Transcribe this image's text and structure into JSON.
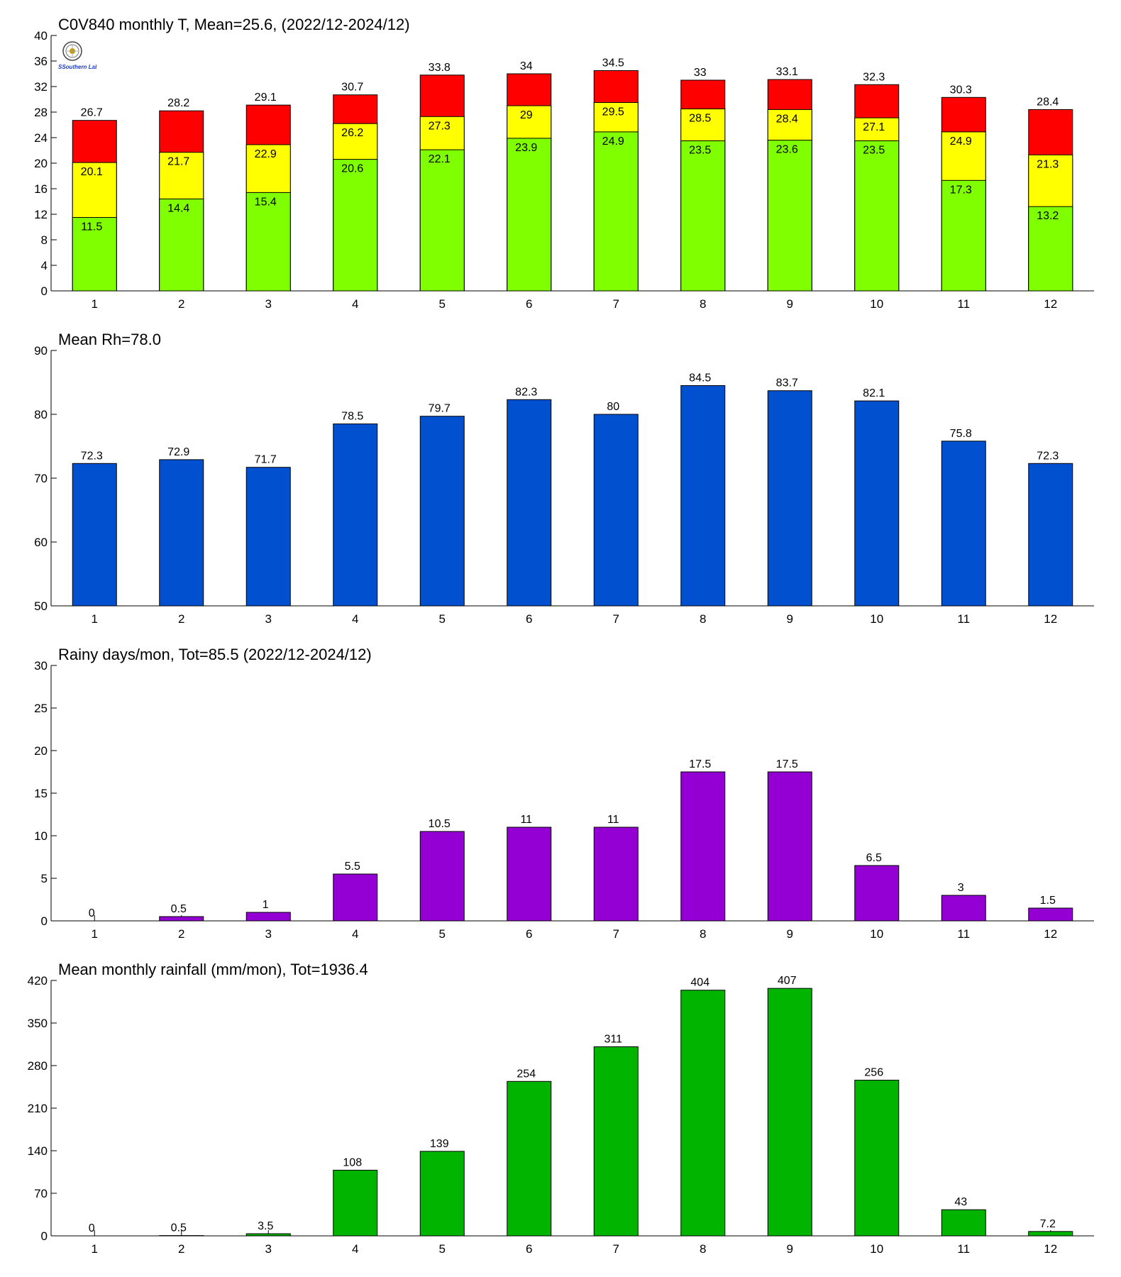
{
  "logo": {
    "text": "SSouthern Lab"
  },
  "chart_data": [
    {
      "type": "bar",
      "stacked": "overlay",
      "title": "C0V840 monthly T, Mean=25.6, (2022/12-2024/12)",
      "categories": [
        "1",
        "2",
        "3",
        "4",
        "5",
        "6",
        "7",
        "8",
        "9",
        "10",
        "11",
        "12"
      ],
      "ylim": [
        0,
        40
      ],
      "yticks": [
        0,
        4,
        8,
        12,
        16,
        20,
        24,
        28,
        32,
        36,
        40
      ],
      "grid": false,
      "series": [
        {
          "color": "#ff0000",
          "values": [
            26.7,
            28.2,
            29.1,
            30.7,
            33.8,
            34,
            34.5,
            33,
            33.1,
            32.3,
            30.3,
            28.4
          ],
          "labels": [
            "26.7",
            "28.2",
            "29.1",
            "30.7",
            "33.8",
            "34",
            "34.5",
            "33",
            "33.1",
            "32.3",
            "30.3",
            "28.4"
          ],
          "label_pos": "above"
        },
        {
          "color": "#ffff00",
          "values": [
            20.1,
            21.7,
            22.9,
            26.2,
            27.3,
            29,
            29.5,
            28.5,
            28.4,
            27.1,
            24.9,
            21.3
          ],
          "labels": [
            "20.1",
            "21.7",
            "22.9",
            "26.2",
            "27.3",
            "29",
            "29.5",
            "28.5",
            "28.4",
            "27.1",
            "24.9",
            "21.3"
          ],
          "label_pos": "inside"
        },
        {
          "color": "#80ff00",
          "values": [
            11.5,
            14.4,
            15.4,
            20.6,
            22.1,
            23.9,
            24.9,
            23.5,
            23.6,
            23.5,
            17.3,
            13.2
          ],
          "labels": [
            "11.5",
            "14.4",
            "15.4",
            "20.6",
            "22.1",
            "23.9",
            "24.9",
            "23.5",
            "23.6",
            "23.5",
            "17.3",
            "13.2"
          ],
          "label_pos": "inside"
        }
      ]
    },
    {
      "type": "bar",
      "title": "Mean Rh=78.0",
      "categories": [
        "1",
        "2",
        "3",
        "4",
        "5",
        "6",
        "7",
        "8",
        "9",
        "10",
        "11",
        "12"
      ],
      "ylim": [
        50,
        90
      ],
      "yticks": [
        50,
        60,
        70,
        80,
        90
      ],
      "grid": false,
      "series": [
        {
          "color": "#0050d0",
          "values": [
            72.3,
            72.9,
            71.7,
            78.5,
            79.7,
            82.3,
            80,
            84.5,
            83.7,
            82.1,
            75.8,
            72.3
          ],
          "labels": [
            "72.3",
            "72.9",
            "71.7",
            "78.5",
            "79.7",
            "82.3",
            "80",
            "84.5",
            "83.7",
            "82.1",
            "75.8",
            "72.3"
          ],
          "label_pos": "above"
        }
      ]
    },
    {
      "type": "bar",
      "title": "Rainy days/mon, Tot=85.5 (2022/12-2024/12)",
      "categories": [
        "1",
        "2",
        "3",
        "4",
        "5",
        "6",
        "7",
        "8",
        "9",
        "10",
        "11",
        "12"
      ],
      "ylim": [
        0,
        30
      ],
      "yticks": [
        0,
        5,
        10,
        15,
        20,
        25,
        30
      ],
      "grid": false,
      "series": [
        {
          "color": "#9400d3",
          "values": [
            0,
            0.5,
            1,
            5.5,
            10.5,
            11,
            11,
            17.5,
            17.5,
            6.5,
            3,
            1.5
          ],
          "labels": [
            "0",
            "0.5",
            "1",
            "5.5",
            "10.5",
            "11",
            "11",
            "17.5",
            "17.5",
            "6.5",
            "3",
            "1.5"
          ],
          "label_pos": "above"
        }
      ]
    },
    {
      "type": "bar",
      "title": "Mean monthly rainfall (mm/mon), Tot=1936.4",
      "categories": [
        "1",
        "2",
        "3",
        "4",
        "5",
        "6",
        "7",
        "8",
        "9",
        "10",
        "11",
        "12"
      ],
      "ylim": [
        0,
        420
      ],
      "yticks": [
        0,
        70,
        140,
        210,
        280,
        350,
        420
      ],
      "grid": false,
      "series": [
        {
          "color": "#00b400",
          "values": [
            0,
            0.5,
            3.5,
            108,
            139,
            254,
            311,
            404,
            407,
            256,
            43,
            7.2
          ],
          "labels": [
            "0",
            "0.5",
            "3.5",
            "108",
            "139",
            "254",
            "311",
            "404",
            "407",
            "256",
            "43",
            "7.2"
          ],
          "label_pos": "above"
        }
      ]
    }
  ]
}
